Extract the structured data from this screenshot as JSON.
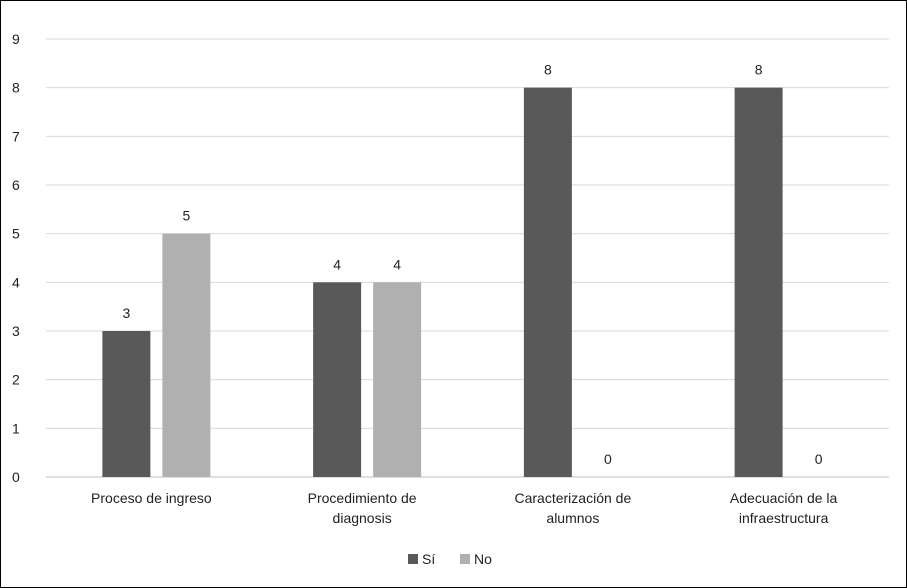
{
  "chart_data": {
    "type": "bar",
    "categories": [
      [
        "Proceso de ingreso"
      ],
      [
        "Procedimiento de",
        "diagnosis"
      ],
      [
        "Caracterización de",
        "alumnos"
      ],
      [
        "Adecuación de la",
        "infraestructura"
      ]
    ],
    "series": [
      {
        "name": "Sí",
        "values": [
          3,
          4,
          8,
          8
        ],
        "color": "#595959"
      },
      {
        "name": "No",
        "values": [
          5,
          4,
          0,
          0
        ],
        "color": "#b0b0b0"
      }
    ],
    "ylim": [
      0,
      9
    ],
    "yticks": [
      0,
      1,
      2,
      3,
      4,
      5,
      6,
      7,
      8,
      9
    ],
    "grid": true,
    "legend_position": "bottom",
    "data_labels": true,
    "title": "",
    "xlabel": "",
    "ylabel": ""
  }
}
